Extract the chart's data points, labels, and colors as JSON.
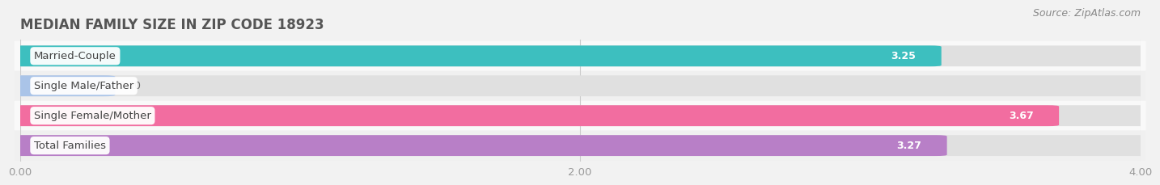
{
  "title": "MEDIAN FAMILY SIZE IN ZIP CODE 18923",
  "source": "Source: ZipAtlas.com",
  "categories": [
    "Married-Couple",
    "Single Male/Father",
    "Single Female/Mother",
    "Total Families"
  ],
  "values": [
    3.25,
    0.0,
    3.67,
    3.27
  ],
  "colors": [
    "#3dbfbf",
    "#aac4e8",
    "#f26da0",
    "#b87fc7"
  ],
  "bar_height": 0.62,
  "xlim": [
    0,
    4.0
  ],
  "xticks": [
    0.0,
    2.0,
    4.0
  ],
  "xtick_labels": [
    "0.00",
    "2.00",
    "4.00"
  ],
  "title_fontsize": 12,
  "label_fontsize": 9.5,
  "value_fontsize": 9,
  "source_fontsize": 9,
  "bg_color": "#f2f2f2",
  "bar_bg_color": "#e0e0e0",
  "row_colors": [
    "#f9f9f9",
    "#f0f0f0",
    "#f9f9f9",
    "#f0f0f0"
  ]
}
